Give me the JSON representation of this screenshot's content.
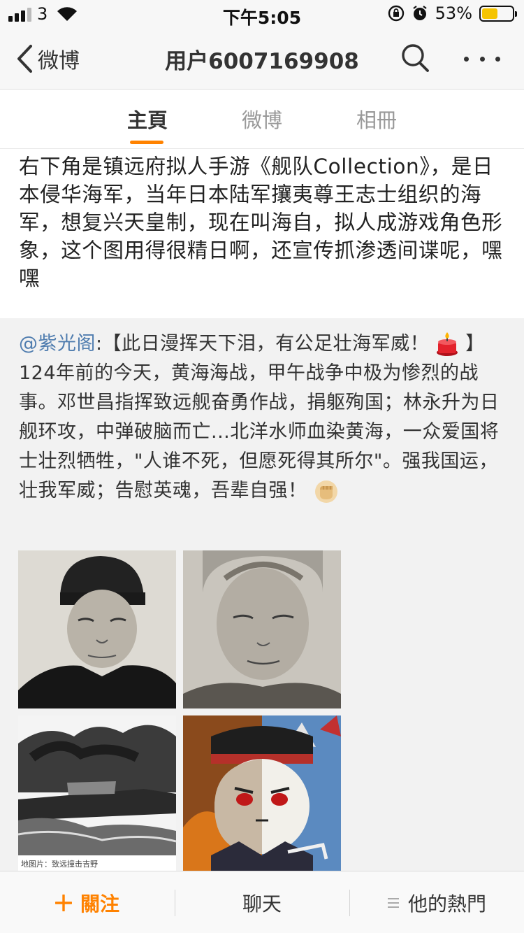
{
  "status_bar": {
    "carrier": "3",
    "time": "下午5:05",
    "battery_percent": "53%",
    "battery_level": 0.53,
    "battery_color": "#f5c400"
  },
  "nav": {
    "back_label": "微博",
    "title": "用户6007169908",
    "icons": [
      "chevron-left-icon",
      "search-icon",
      "more-icon"
    ]
  },
  "tabs": [
    {
      "label": "主頁",
      "active": true
    },
    {
      "label": "微博",
      "active": false
    },
    {
      "label": "相冊",
      "active": false
    }
  ],
  "post": {
    "text": "右下角是镇远府拟人手游《舰队Collection》，是日本侵华海军，当年日本陆军攘夷尊王志士组织的海军，想复兴天皇制，现在叫海自，拟人成游戏角色形象，这个图用得很精日啊，还宣传抓渗透间谍呢，嘿嘿"
  },
  "repost": {
    "mention": "@紫光阁",
    "text_part1": ":【此日漫挥天下泪，有公足壮海军威！",
    "text_part2": "】124年前的今天，黄海海战，甲午战争中极为惨烈的战事。邓世昌指挥致远舰奋勇作战，捐躯殉国；林永升为日舰环攻，中弹破脑而亡...北洋水师血染黄海，一众爱国将士壮烈牺牲，\"人谁不死，但愿死得其所尔\"。强我国运，壮我军威；告慰英魂，吾辈自强！",
    "emoji_1": "candle-emoji",
    "emoji_2": "fist-emoji",
    "images": [
      {
        "name": "portrait-1",
        "caption": ""
      },
      {
        "name": "portrait-2",
        "caption": ""
      },
      {
        "name": "battle-photo",
        "caption": "地图片：致远撞击吉野"
      },
      {
        "name": "anime-illustration",
        "caption": ""
      }
    ]
  },
  "bottom_bar": {
    "follow_label": "關注",
    "chat_label": "聊天",
    "hot_label": "他的熱門",
    "accent_color": "#ff8200"
  }
}
